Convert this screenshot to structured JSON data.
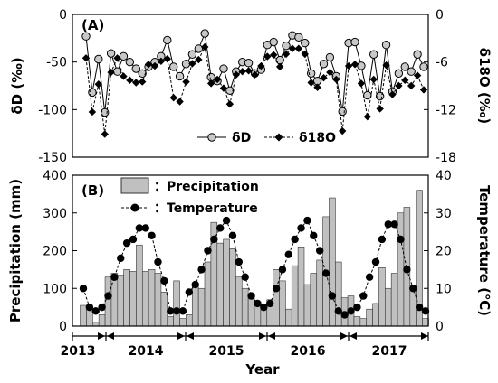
{
  "chart_data": [
    {
      "panel": "(A)",
      "type": "line",
      "xlabel": "",
      "ylabel_left": "δD (‰)",
      "ylabel_right": "δ18O (‰)",
      "ylim_left": [
        -150,
        0
      ],
      "yticks_left": [
        "0",
        "-50",
        "-100",
        "-150"
      ],
      "ylim_right": [
        -18,
        0
      ],
      "yticks_right": [
        "0",
        "-6",
        "-12",
        "-18"
      ],
      "legend_position": "bottom-center",
      "series": [
        {
          "name": "δD",
          "axis": "left",
          "marker": "circle",
          "line": "solid",
          "values": [
            -23,
            -82,
            -47,
            -103,
            -41,
            -60,
            -44,
            -50,
            -57,
            -62,
            -55,
            -50,
            -44,
            -27,
            -55,
            -65,
            -52,
            -42,
            -36,
            -20,
            -66,
            -70,
            -57,
            -80,
            -60,
            -50,
            -51,
            -62,
            -58,
            -32,
            -29,
            -48,
            -33,
            -22,
            -24,
            -30,
            -62,
            -70,
            -52,
            -45,
            -65,
            -102,
            -30,
            -29,
            -54,
            -85,
            -42,
            -86,
            -32,
            -81,
            -62,
            -55,
            -60,
            -42,
            -55
          ]
        },
        {
          "name": "δ18O",
          "axis": "right",
          "marker": "diamond",
          "line": "dashed",
          "values": [
            -5.5,
            -12.3,
            -8.8,
            -15.1,
            -7.3,
            -5.5,
            -7.8,
            -8.3,
            -8.6,
            -8.5,
            -6.3,
            -6.5,
            -5.9,
            -5.6,
            -10.5,
            -11.0,
            -8.5,
            -6.2,
            -5.7,
            -4.1,
            -8.7,
            -8.2,
            -9.3,
            -11.3,
            -7.6,
            -7.2,
            -7.1,
            -7.6,
            -6.5,
            -5.3,
            -5.1,
            -6.6,
            -5.0,
            -4.3,
            -4.3,
            -5.0,
            -8.6,
            -9.2,
            -8.0,
            -7.3,
            -8.2,
            -14.7,
            -6.5,
            -6.3,
            -8.7,
            -12.9,
            -8.2,
            -11.9,
            -6.4,
            -10.1,
            -9.0,
            -8.3,
            -9.0,
            -7.7,
            -9.5
          ]
        }
      ]
    },
    {
      "panel": "(B)",
      "type": "bar",
      "xlabel": "Year",
      "ylabel_left": "Precipitation  (mm)",
      "ylabel_right": "Temperature (℃)",
      "ylim_left": [
        0,
        400
      ],
      "yticks_left": [
        "0",
        "100",
        "200",
        "300",
        "400"
      ],
      "ylim_right": [
        0,
        40
      ],
      "yticks_right": [
        "0",
        "10",
        "20",
        "30",
        "40"
      ],
      "legend_position": "top-center",
      "year_labels": [
        "2013",
        "2014",
        "2015",
        "2016",
        "2017"
      ],
      "series": [
        {
          "name": "：Precipitation",
          "axis": "left",
          "type": "bar",
          "values": [
            55,
            45,
            10,
            30,
            130,
            140,
            135,
            150,
            145,
            215,
            145,
            150,
            140,
            90,
            25,
            120,
            20,
            30,
            110,
            100,
            170,
            275,
            220,
            230,
            205,
            130,
            100,
            80,
            65,
            45,
            70,
            150,
            120,
            45,
            160,
            210,
            110,
            140,
            175,
            290,
            340,
            170,
            75,
            80,
            25,
            20,
            45,
            60,
            155,
            100,
            140,
            300,
            315,
            100,
            360,
            20
          ]
        },
        {
          "name": "：Temperature",
          "axis": "right",
          "type": "line",
          "marker": "circle",
          "line": "dashed",
          "values": [
            10,
            5,
            4,
            5,
            8,
            13,
            18,
            22,
            23,
            26,
            26,
            24,
            17,
            12,
            4,
            4,
            4,
            9,
            11,
            15,
            20,
            23,
            26,
            28,
            24,
            17,
            13,
            8,
            6,
            5,
            6,
            10,
            15,
            19,
            23,
            26,
            28,
            24,
            20,
            14,
            8,
            4,
            3,
            4,
            5,
            8,
            13,
            17,
            23,
            27,
            27,
            23,
            15,
            10,
            5,
            4
          ]
        }
      ]
    }
  ]
}
